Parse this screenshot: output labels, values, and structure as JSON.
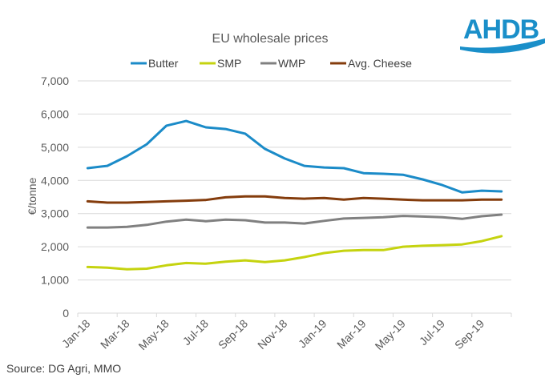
{
  "logo": {
    "text": "AHDB",
    "color": "#1a8fc9"
  },
  "source": "Source: DG Agri, MMO",
  "chart_data": {
    "type": "line",
    "title": "EU wholesale prices",
    "xlabel": "",
    "ylabel": "€/tonne",
    "ylim": [
      0,
      7000
    ],
    "yticks": [
      0,
      1000,
      2000,
      3000,
      4000,
      5000,
      6000,
      7000
    ],
    "ytick_labels": [
      "0",
      "1,000",
      "2,000",
      "3,000",
      "4,000",
      "5,000",
      "6,000",
      "7,000"
    ],
    "grid": true,
    "legend_position": "top",
    "x": [
      "Jan-18",
      "Feb-18",
      "Mar-18",
      "Apr-18",
      "May-18",
      "Jun-18",
      "Jul-18",
      "Aug-18",
      "Sep-18",
      "Oct-18",
      "Nov-18",
      "Dec-18",
      "Jan-19",
      "Feb-19",
      "Mar-19",
      "Apr-19",
      "May-19",
      "Jun-19",
      "Jul-19",
      "Aug-19",
      "Sep-19",
      "Oct-19"
    ],
    "xtick_labels": [
      "Jan-18",
      "Mar-18",
      "May-18",
      "Jul-18",
      "Sep-18",
      "Nov-18",
      "Jan-19",
      "Mar-19",
      "May-19",
      "Jul-19",
      "Sep-19"
    ],
    "series": [
      {
        "name": "Butter",
        "color": "#1b8bc8",
        "values": [
          4370,
          4440,
          4730,
          5090,
          5650,
          5790,
          5600,
          5550,
          5410,
          4950,
          4660,
          4440,
          4390,
          4370,
          4220,
          4200,
          4170,
          4030,
          3860,
          3640,
          3690,
          3670
        ]
      },
      {
        "name": "SMP",
        "color": "#c5d30f",
        "values": [
          1390,
          1370,
          1320,
          1340,
          1440,
          1510,
          1490,
          1550,
          1590,
          1540,
          1590,
          1690,
          1810,
          1880,
          1900,
          1900,
          2000,
          2030,
          2050,
          2070,
          2170,
          2320
        ]
      },
      {
        "name": "WMP",
        "color": "#808080",
        "values": [
          2580,
          2580,
          2600,
          2660,
          2760,
          2820,
          2770,
          2820,
          2800,
          2730,
          2730,
          2700,
          2780,
          2850,
          2870,
          2890,
          2930,
          2910,
          2890,
          2840,
          2920,
          2970
        ]
      },
      {
        "name": "Avg. Cheese",
        "color": "#843c0c",
        "values": [
          3370,
          3330,
          3330,
          3350,
          3370,
          3390,
          3410,
          3490,
          3520,
          3520,
          3470,
          3450,
          3470,
          3420,
          3470,
          3450,
          3420,
          3400,
          3400,
          3400,
          3420,
          3420
        ]
      }
    ]
  }
}
